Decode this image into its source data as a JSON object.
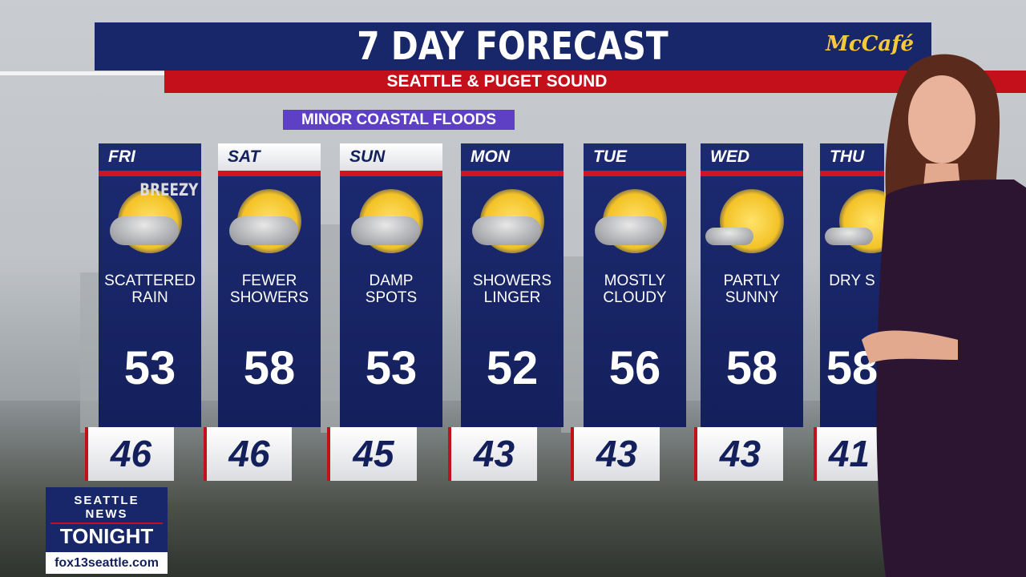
{
  "header": {
    "title": "7 DAY FORECAST",
    "subtitle": "SEATTLE & PUGET SOUND",
    "sponsor": "McCafé"
  },
  "alert": "MINOR COASTAL FLOODS",
  "days": [
    {
      "day": "FRI",
      "note": "BREEZY",
      "condition": [
        "SCATTERED",
        "RAIN"
      ],
      "high": "53",
      "low": "46",
      "icon": "sun-clouds-rain-icon"
    },
    {
      "day": "SAT",
      "condition": [
        "FEWER",
        "SHOWERS"
      ],
      "high": "58",
      "low": "46",
      "icon": "sun-clouds-rain-icon"
    },
    {
      "day": "SUN",
      "condition": [
        "DAMP",
        "SPOTS"
      ],
      "high": "53",
      "low": "45",
      "icon": "sun-clouds-rain-icon"
    },
    {
      "day": "MON",
      "condition": [
        "SHOWERS",
        "LINGER"
      ],
      "high": "52",
      "low": "43",
      "icon": "sun-clouds-rain-icon"
    },
    {
      "day": "TUE",
      "condition": [
        "MOSTLY",
        "CLOUDY"
      ],
      "high": "56",
      "low": "43",
      "icon": "mostly-cloudy-icon"
    },
    {
      "day": "WED",
      "condition": [
        "PARTLY",
        "SUNNY"
      ],
      "high": "58",
      "low": "43",
      "icon": "partly-sunny-icon"
    },
    {
      "day": "THU",
      "condition": [
        "DRY S",
        ""
      ],
      "high": "58",
      "low": "41",
      "icon": "partly-sunny-icon"
    }
  ],
  "branding": {
    "show_line1": "SEATTLE NEWS",
    "show_line2": "TONIGHT",
    "url": "fox13seattle.com"
  },
  "colors": {
    "navy": "#18266a",
    "red": "#c3101a",
    "alert": "#5d40c4",
    "sponsor": "#f6c93a"
  }
}
